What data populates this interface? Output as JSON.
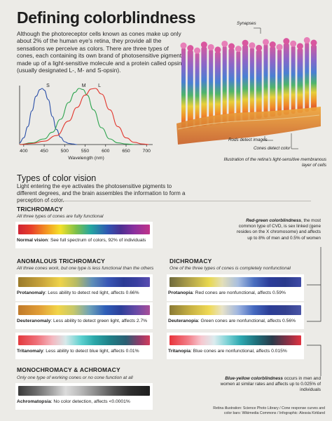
{
  "title": "Defining colorblindness",
  "intro": "Although the photoreceptor cells known as cones make up only about 2% of the human eye's retina, they provide all the sensations we perceive as colors. There are three types of cones, each containing its own brand of photosensitive pigment, made up of a light-sensitive molecule and a protein called opsin (usually designated L-, M- and S-opsin).",
  "chart_data": {
    "type": "line",
    "xlabel": "Wavelength (nm)",
    "ylabel": "",
    "x_ticks": [
      400,
      450,
      500,
      550,
      600,
      650,
      700
    ],
    "xlim": [
      390,
      715
    ],
    "ylim": [
      0,
      1.05
    ],
    "y_ticks": [],
    "series": [
      {
        "name": "S",
        "color": "#2a4fa8",
        "x": [
          390,
          400,
          410,
          420,
          430,
          440,
          445,
          450,
          460,
          470,
          480,
          490,
          500,
          510,
          520,
          530
        ],
        "y": [
          0.03,
          0.12,
          0.32,
          0.6,
          0.86,
          0.98,
          1.0,
          0.97,
          0.8,
          0.5,
          0.27,
          0.13,
          0.05,
          0.02,
          0.01,
          0.0
        ]
      },
      {
        "name": "M",
        "color": "#2da44e",
        "x": [
          390,
          420,
          450,
          470,
          490,
          510,
          525,
          535,
          545,
          555,
          570,
          590,
          610,
          630,
          650,
          670
        ],
        "y": [
          0.0,
          0.03,
          0.1,
          0.22,
          0.45,
          0.75,
          0.93,
          1.0,
          0.98,
          0.88,
          0.62,
          0.3,
          0.1,
          0.03,
          0.01,
          0.0
        ]
      },
      {
        "name": "L",
        "color": "#e2352c",
        "x": [
          390,
          420,
          450,
          480,
          510,
          530,
          550,
          565,
          575,
          590,
          610,
          630,
          650,
          670,
          690,
          705
        ],
        "y": [
          0.0,
          0.02,
          0.06,
          0.16,
          0.42,
          0.66,
          0.88,
          0.99,
          1.0,
          0.9,
          0.62,
          0.32,
          0.12,
          0.04,
          0.01,
          0.0
        ]
      }
    ]
  },
  "photo": {
    "synapses_label": "Synapses",
    "rods_label": "Rods detect images",
    "cones_label": "Cones detect color",
    "caption": "Illustration of the retina's light-sensitive membranous layer of cells"
  },
  "types": {
    "heading": "Types of color vision",
    "body": "Light entering the eye activates the photosensitive pigments to different degrees, and the brain assembles the information to form a perception of color."
  },
  "trichromacy": {
    "heading": "TRICHROMACY",
    "sub": "All three types of cones are fully functional",
    "normal_term": "Normal vision",
    "normal_desc": ": See full spectrum of colors, 92% of individuals"
  },
  "anomalous": {
    "heading": "ANOMALOUS TRICHROMACY",
    "sub": "All three cones work, but one type is less functional than the others",
    "items": [
      {
        "term": "Protanomaly",
        "desc": ": Less ability to detect red light, affects 0.66%"
      },
      {
        "term": "Deuteranomaly",
        "desc": ": Less ability to detect green light, affects 2.7%"
      },
      {
        "term": "Tritanomaly",
        "desc": ": Less ability to detect blue light, affects 0.01%"
      }
    ]
  },
  "dichromacy": {
    "heading": "DICHROMACY",
    "sub": "One of the three types of cones is completely nonfunctional",
    "items": [
      {
        "term": "Protanopia",
        "desc": ": Red cones are nonfunctional, affects 0.59%"
      },
      {
        "term": "Deuteranopia",
        "desc": ": Green cones are nonfunctional, affects 0.56%"
      },
      {
        "term": "Tritanopia",
        "desc": ": Blue cones are nonfunctional, affects 0.015%"
      }
    ]
  },
  "mono": {
    "heading": "MONOCHROMACY & ACHROMACY",
    "sub": "Only one type of working cones or no cone function at all",
    "term": "Achromatopsia",
    "desc": ": No color detection, affects <0.0001%"
  },
  "notes": {
    "red_green_term": "Red-green colorblindness",
    "red_green_text": ", the most common type of CVD, is sex linked (gene resides on the X chromosome) and affects up to 8% of men and 0.5% of women",
    "blue_yellow_term": "Blue-yellow colorblindness",
    "blue_yellow_text": " occurs in men and women at similar rates and affects up to 0.025% of individuals"
  },
  "credit": "Retina illustration: Science Photo Library / Cone response curves and color bars: Wikimedia Commons / Infographic: Alessia Kirkland"
}
